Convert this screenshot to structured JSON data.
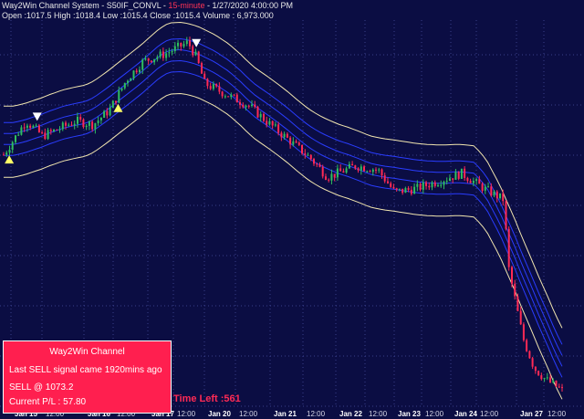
{
  "header": {
    "system": "Way2Win Channel System",
    "symbol": "S50IF_CONVL",
    "interval": "15-minute",
    "datetime": "1/27/2020 4:00:00 PM",
    "ohlc_line": "Open :1017.5 High :1018.4 Low :1015.4 Close :1015.4 Volume : 6,973.000"
  },
  "panel": {
    "title": "Way2Win  Channel",
    "line1": "Last SELL signal came 1920mins ago",
    "line2": "SELL @ 1073.2",
    "line3": "Current P/L : 57.80"
  },
  "time_left": "Time Left :561",
  "x_axis": {
    "ticks": [
      {
        "label": "Jan 15",
        "major": true
      },
      {
        "label": "12:00",
        "major": false
      },
      {
        "label": "Jan 16",
        "major": true
      },
      {
        "label": "12:00",
        "major": false
      },
      {
        "label": "Jan 17",
        "major": true
      },
      {
        "label": "12:00",
        "major": false
      },
      {
        "label": "Jan 20",
        "major": true
      },
      {
        "label": "12:00",
        "major": false
      },
      {
        "label": "Jan 21",
        "major": true
      },
      {
        "label": "12:00",
        "major": false
      },
      {
        "label": "Jan 22",
        "major": true
      },
      {
        "label": "12:00",
        "major": false
      },
      {
        "label": "Jan 23",
        "major": true
      },
      {
        "label": "12:00",
        "major": false
      },
      {
        "label": "Jan 24",
        "major": true
      },
      {
        "label": "12:00",
        "major": false
      },
      {
        "label": "Jan 27",
        "major": true
      },
      {
        "label": "12:00",
        "major": false
      }
    ]
  },
  "colors": {
    "background": "#0b0d43",
    "grid": "#3a3f8a",
    "up": "#2fbf5f",
    "down": "#ff2a55",
    "outer_band": "#f2e6b0",
    "inner_band": "#2a3dff",
    "buy_marker": "#ffff66",
    "sell_marker": "#ffffff",
    "panel": "#ff1f4f"
  },
  "signals": [
    {
      "type": "buy",
      "index": 0
    },
    {
      "type": "sell",
      "index": 1
    },
    {
      "type": "buy",
      "index": 2
    },
    {
      "type": "sell",
      "index": 3
    }
  ],
  "chart_data": {
    "type": "candlestick",
    "price_path": [
      {
        "t": 0.0,
        "p": 0.66
      },
      {
        "t": 0.04,
        "p": 0.75
      },
      {
        "t": 0.07,
        "p": 0.71
      },
      {
        "t": 0.1,
        "p": 0.73
      },
      {
        "t": 0.13,
        "p": 0.75
      },
      {
        "t": 0.16,
        "p": 0.74
      },
      {
        "t": 0.19,
        "p": 0.78
      },
      {
        "t": 0.22,
        "p": 0.86
      },
      {
        "t": 0.25,
        "p": 0.91
      },
      {
        "t": 0.29,
        "p": 0.93
      },
      {
        "t": 0.33,
        "p": 0.96
      },
      {
        "t": 0.345,
        "p": 0.92
      },
      {
        "t": 0.36,
        "p": 0.85
      },
      {
        "t": 0.4,
        "p": 0.82
      },
      {
        "t": 0.44,
        "p": 0.79
      },
      {
        "t": 0.47,
        "p": 0.75
      },
      {
        "t": 0.51,
        "p": 0.7
      },
      {
        "t": 0.55,
        "p": 0.65
      },
      {
        "t": 0.58,
        "p": 0.6
      },
      {
        "t": 0.63,
        "p": 0.63
      },
      {
        "t": 0.67,
        "p": 0.62
      },
      {
        "t": 0.7,
        "p": 0.56
      },
      {
        "t": 0.74,
        "p": 0.57
      },
      {
        "t": 0.78,
        "p": 0.59
      },
      {
        "t": 0.82,
        "p": 0.61
      },
      {
        "t": 0.86,
        "p": 0.57
      },
      {
        "t": 0.895,
        "p": 0.54
      },
      {
        "t": 0.905,
        "p": 0.35
      },
      {
        "t": 0.93,
        "p": 0.17
      },
      {
        "t": 0.95,
        "p": 0.09
      },
      {
        "t": 0.97,
        "p": 0.06
      },
      {
        "t": 1.0,
        "p": 0.03
      }
    ]
  }
}
